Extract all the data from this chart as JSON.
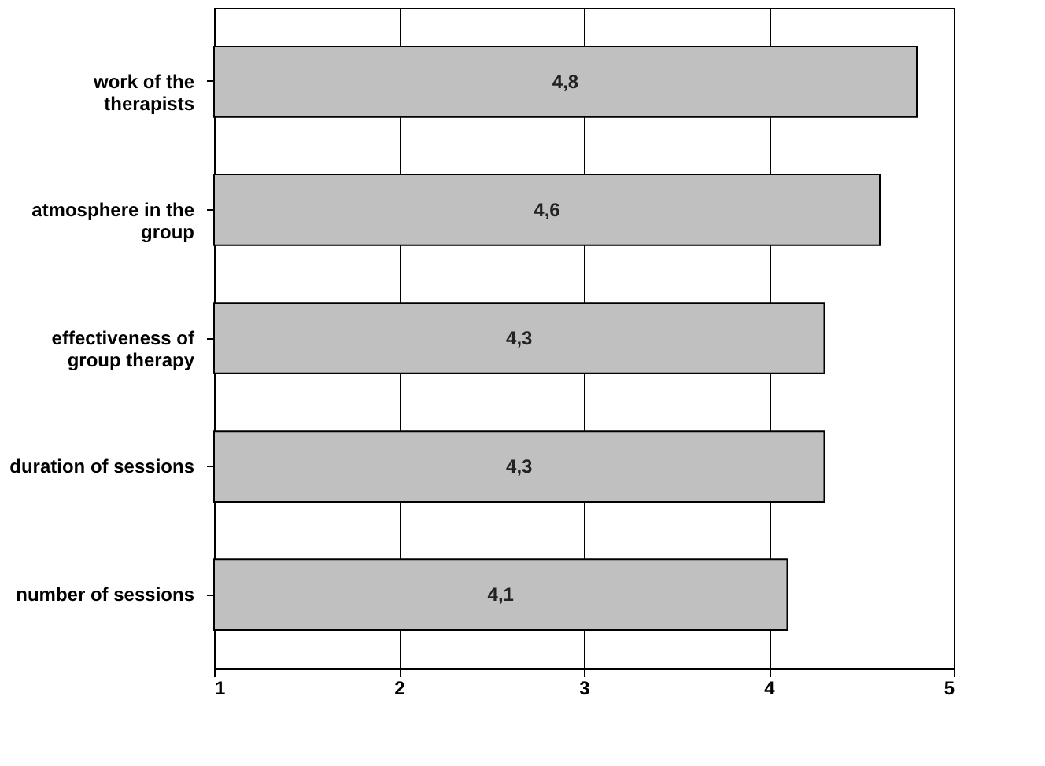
{
  "chart_data": {
    "type": "bar",
    "orientation": "horizontal",
    "categories": [
      "work of the therapists",
      "atmosphere in the group",
      "effectiveness of group therapy",
      "duration of sessions",
      "number of sessions"
    ],
    "values": [
      4.8,
      4.6,
      4.3,
      4.3,
      4.1
    ],
    "value_labels": [
      "4,8",
      "4,6",
      "4,3",
      "4,3",
      "4,1"
    ],
    "color": "#c0c0c0",
    "xlim": [
      1,
      5
    ],
    "xticks": [
      1,
      2,
      3,
      4,
      5
    ],
    "grid": "x"
  }
}
